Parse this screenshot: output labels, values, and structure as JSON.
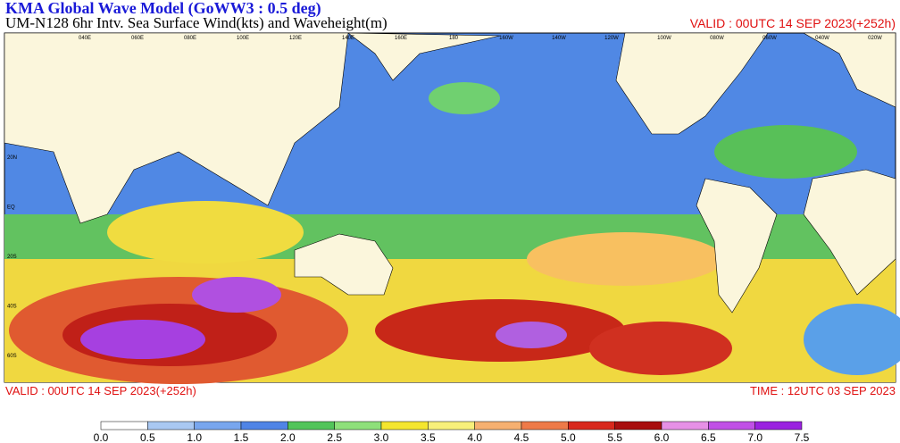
{
  "header": {
    "title": "KMA  Global Wave Model (GoWW3 : 0.5 deg)",
    "subtitle": "UM-N128  6hr Intv. Sea Surface Wind(kts) and Waveheight(m)",
    "valid_top": "VALID : 00UTC 14 SEP 2023(+252h)"
  },
  "footer": {
    "valid": "VALID : 00UTC 14 SEP 2023(+252h)",
    "time": "TIME : 12UTC 03 SEP 2023"
  },
  "map": {
    "lon_labels": [
      "040E",
      "060E",
      "080E",
      "100E",
      "120E",
      "140E",
      "160E",
      "180",
      "160W",
      "140W",
      "120W",
      "100W",
      "080W",
      "060W",
      "040W",
      "020W"
    ],
    "lat_labels": [
      "20N",
      "EQ",
      "20S",
      "40S",
      "60S"
    ]
  },
  "legend": {
    "ticks": [
      {
        "value": 0,
        "label": "0.0"
      },
      0.5,
      {
        "value": 1,
        "label": "1.0"
      },
      1.5,
      {
        "value": 2,
        "label": "2.0"
      },
      2.5,
      {
        "value": 3,
        "label": "3.0"
      },
      3.5,
      {
        "value": 4,
        "label": "4.0"
      },
      4.5,
      {
        "value": 5,
        "label": "5.0"
      },
      5.5,
      {
        "value": 6,
        "label": "6.0"
      },
      6.5,
      {
        "value": 7,
        "label": "7.0"
      },
      7.5
    ],
    "colors": [
      "#ffffff",
      "#a9c8f2",
      "#78a6ee",
      "#4f84e6",
      "#52c45a",
      "#8ee07a",
      "#f4e62e",
      "#f8f07a",
      "#f6b070",
      "#ee7a48",
      "#d8281c",
      "#a80e0e",
      "#e690e6",
      "#c050e6",
      "#9a22e0"
    ]
  }
}
